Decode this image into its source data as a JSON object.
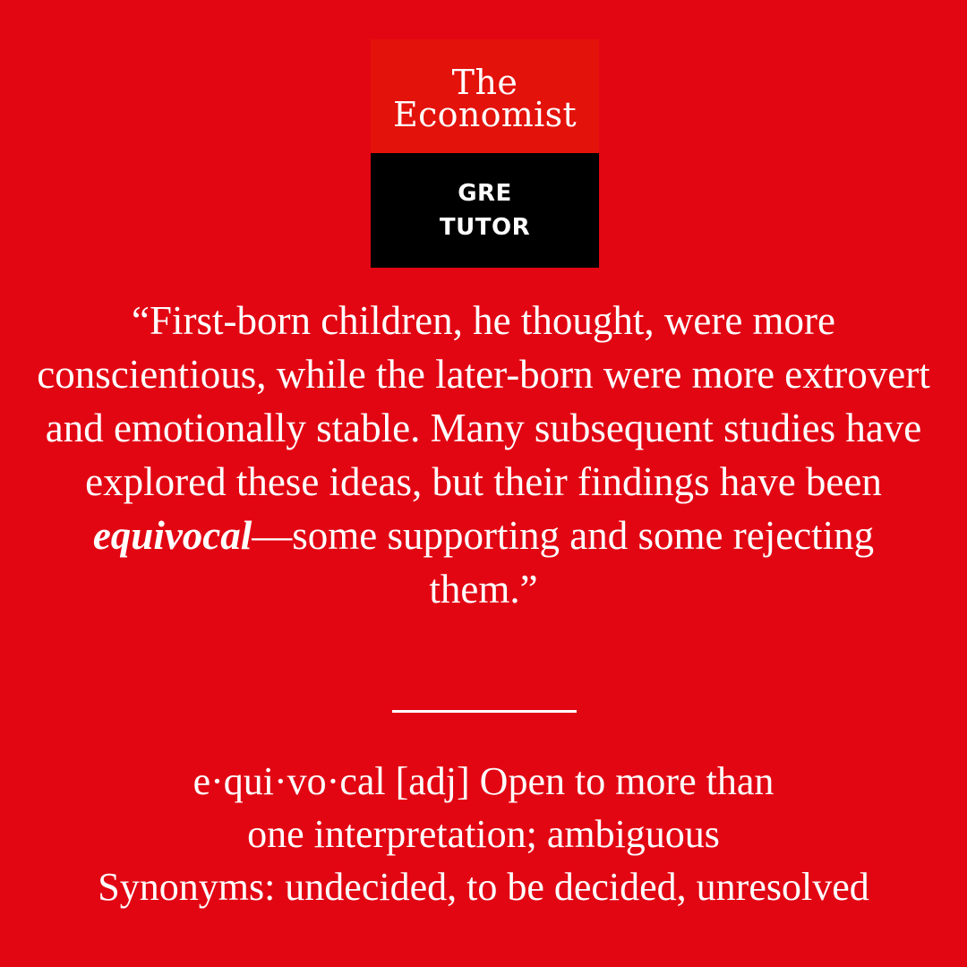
{
  "colors": {
    "background": "#e20613",
    "logo_top": "#e3120b",
    "logo_bottom": "#000000",
    "text": "#ffffff"
  },
  "logo": {
    "line1": "The",
    "line2": "Economist",
    "sub_line1": "GRE",
    "sub_line2": "TUTOR"
  },
  "quote": {
    "before": "“First-born children, he thought, were more conscientious, while the later-born were more extrovert and emotionally stable. Many subsequent studies have explored these ideas, but their findings have been ",
    "term": "equivocal",
    "after": "—some supporting and some rejecting them.”"
  },
  "definition": {
    "line1": "e·qui·vo·cal [adj] Open to more than",
    "line2": "one interpretation; ambiguous",
    "line3": "Synonyms: undecided, to be decided, unresolved"
  }
}
